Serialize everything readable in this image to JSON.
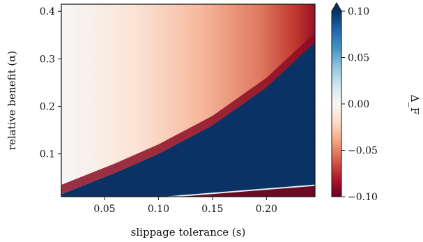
{
  "chart_data": {
    "type": "heatmap",
    "title": "",
    "xlabel": "slippage tolerance (s)",
    "ylabel": "relative benefit (α)",
    "xlim": [
      0.01,
      0.245
    ],
    "ylim": [
      0.01,
      0.415
    ],
    "x_ticks": [
      0.05,
      0.1,
      0.15,
      0.2
    ],
    "x_tick_labels": [
      "0.05",
      "0.10",
      "0.15",
      "0.20"
    ],
    "y_ticks": [
      0.1,
      0.2,
      0.3,
      0.4
    ],
    "y_tick_labels": [
      "0.1",
      "0.2",
      "0.3",
      "0.4"
    ],
    "colorbar": {
      "label": "Δ_F",
      "vmin": -0.1,
      "vmax": 0.1,
      "ticks": [
        0.1,
        0.05,
        0.0,
        -0.05,
        -0.1
      ],
      "tick_labels": [
        "0.10",
        "0.05",
        "0.00",
        "−0.05",
        "−0.10"
      ],
      "extend": "max",
      "colormap": "RdBu"
    },
    "regions": {
      "upper_boundary": [
        [
          0.01,
          0.015
        ],
        [
          0.06,
          0.06
        ],
        [
          0.1,
          0.1
        ],
        [
          0.15,
          0.16
        ],
        [
          0.2,
          0.24
        ],
        [
          0.245,
          0.335
        ]
      ],
      "lower_boundary": [
        [
          0.06,
          0.0
        ],
        [
          0.1,
          0.008
        ],
        [
          0.15,
          0.017
        ],
        [
          0.2,
          0.026
        ],
        [
          0.245,
          0.034
        ]
      ]
    }
  }
}
